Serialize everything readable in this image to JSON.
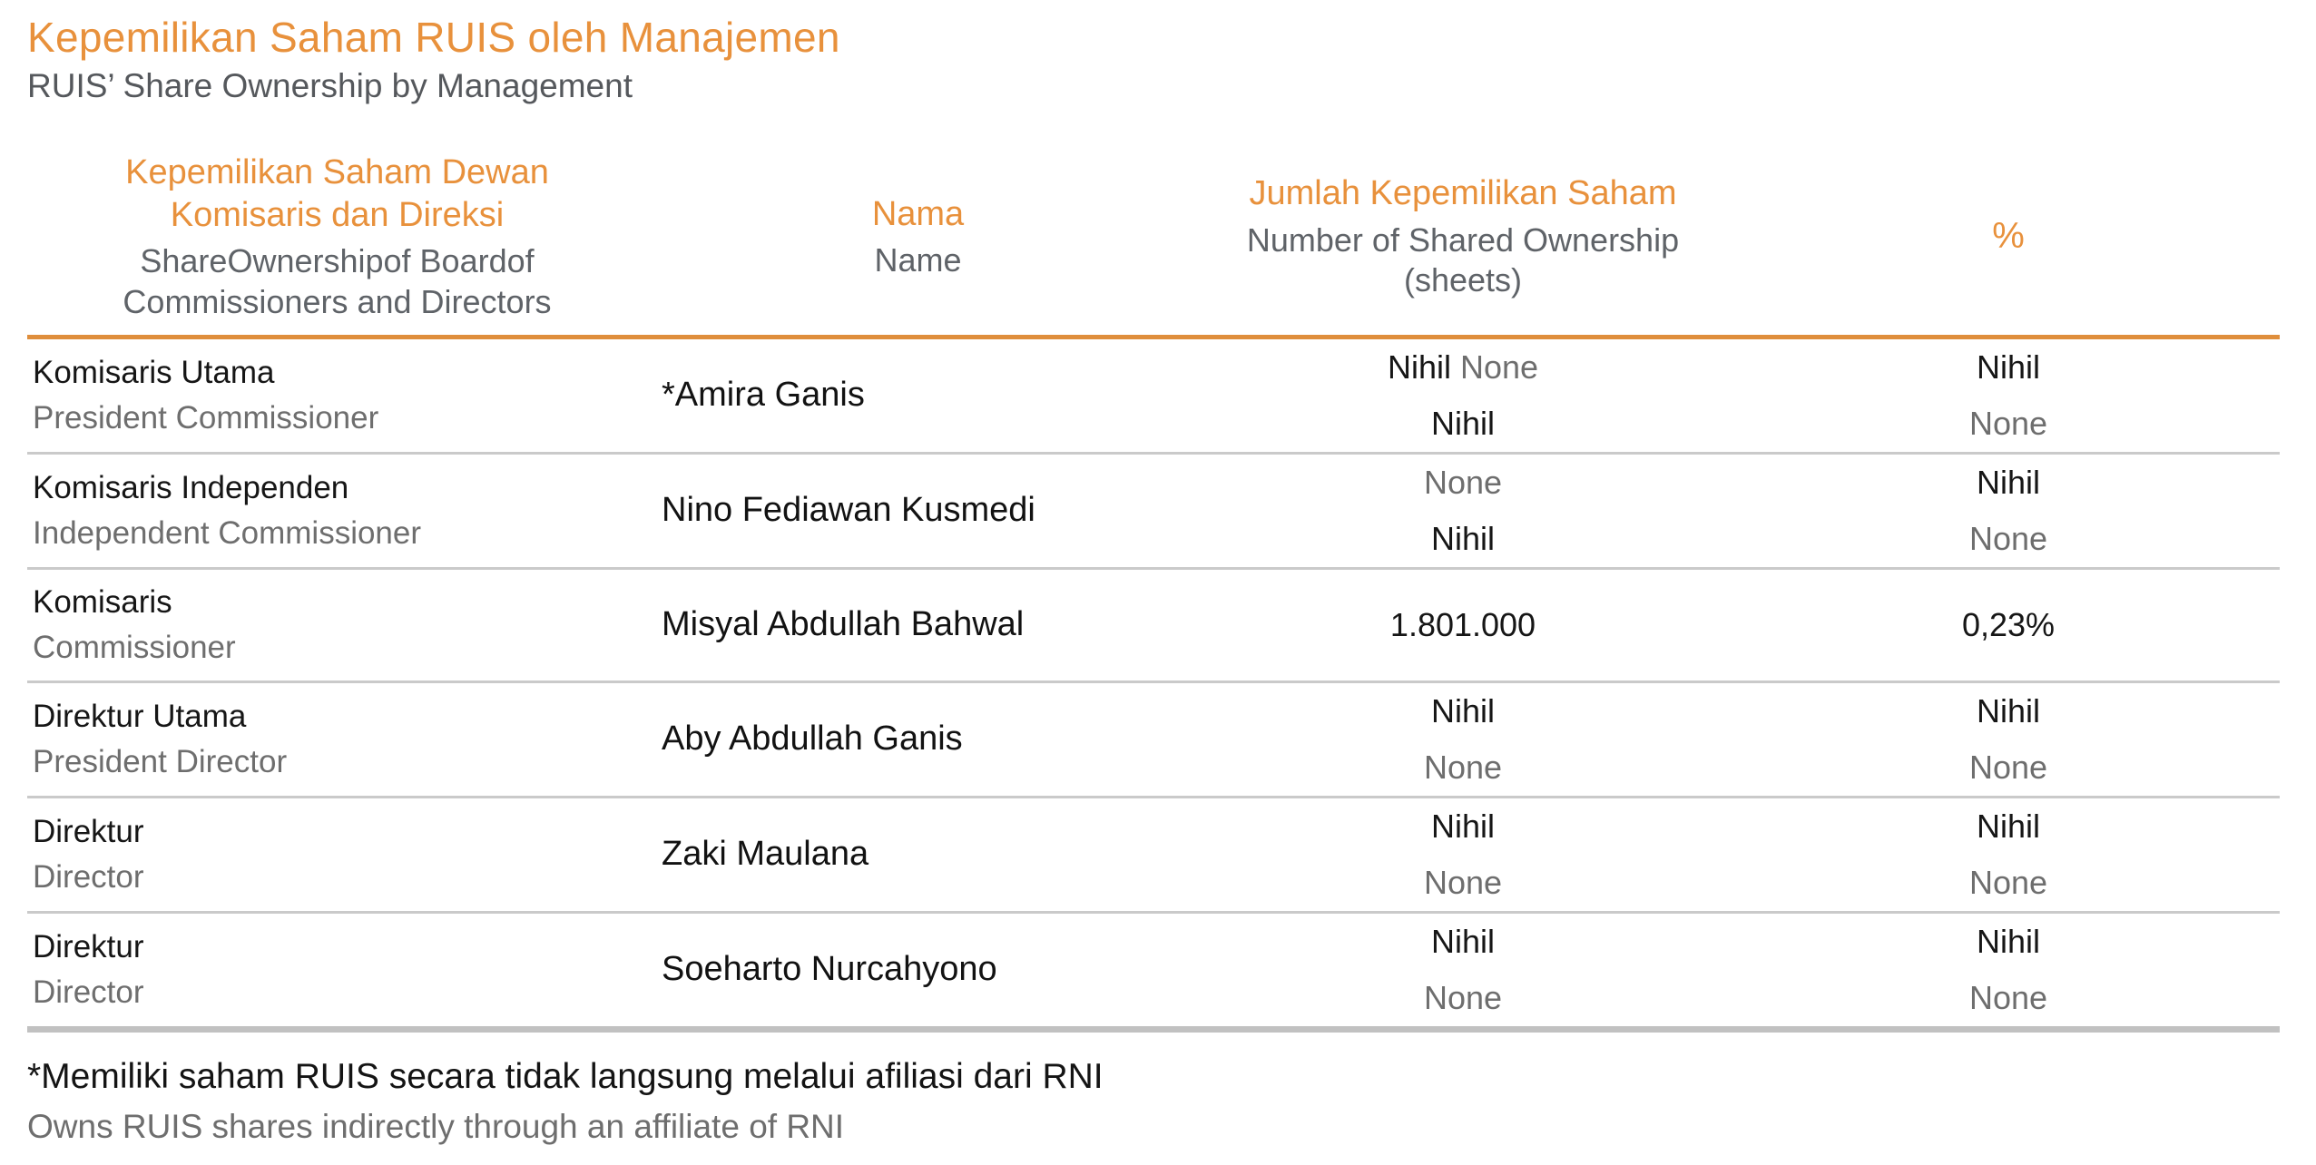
{
  "page": {
    "title": "Kepemilikan Saham RUIS oleh Manajemen",
    "subtitle": "RUIS’ Share Ownership by Management"
  },
  "colors": {
    "accent": "#E8913C",
    "header_border": "#DF8E3C",
    "row_divider": "#CACACA",
    "bottom_border": "#C1C1C1",
    "text_dark": "#161616",
    "text_muted": "#6E6E6E"
  },
  "table": {
    "columns": [
      {
        "title_id": "Kepemilikan Saham Dewan\nKomisaris dan Direksi",
        "title_en": "ShareOwnershipof Boardof\nCommissioners and Directors"
      },
      {
        "title_id": "Nama",
        "title_en": "Name"
      },
      {
        "title_id": "Jumlah Kepemilikan Saham",
        "title_en": "Number of Shared Ownership\n(sheets)"
      },
      {
        "title_id": "%",
        "title_en": ""
      }
    ],
    "rows": [
      {
        "position_id": "Komisaris Utama",
        "position_en": "President Commissioner",
        "name": "*Amira Ganis",
        "shares": [
          [
            [
              "Nihil ",
              "d"
            ],
            [
              "None",
              "m"
            ]
          ],
          [
            [
              "Nihil",
              "d"
            ]
          ]
        ],
        "percent": [
          [
            [
              "Nihil",
              "d"
            ]
          ],
          [
            [
              "None",
              "m"
            ]
          ]
        ]
      },
      {
        "position_id": "Komisaris Independen",
        "position_en": "Independent Commissioner",
        "name": "Nino Fediawan Kusmedi",
        "shares": [
          [
            [
              "None",
              "m"
            ]
          ],
          [
            [
              "Nihil",
              "d"
            ]
          ]
        ],
        "percent": [
          [
            [
              "Nihil",
              "d"
            ]
          ],
          [
            [
              "None",
              "m"
            ]
          ]
        ]
      },
      {
        "position_id": "Komisaris",
        "position_en": "Commissioner",
        "name": "Misyal Abdullah Bahwal",
        "shares": [
          [
            [
              "1.801.000",
              "d"
            ]
          ]
        ],
        "percent": [
          [
            [
              "0,23%",
              "d"
            ]
          ]
        ]
      },
      {
        "position_id": "Direktur Utama",
        "position_en": "President Director",
        "name": "Aby Abdullah Ganis",
        "shares": [
          [
            [
              "Nihil",
              "d"
            ]
          ],
          [
            [
              "None",
              "m"
            ]
          ]
        ],
        "percent": [
          [
            [
              "Nihil",
              "d"
            ]
          ],
          [
            [
              "None",
              "m"
            ]
          ]
        ]
      },
      {
        "position_id": "Direktur",
        "position_en": "Director",
        "name": "Zaki Maulana",
        "shares": [
          [
            [
              "Nihil",
              "d"
            ]
          ],
          [
            [
              "None",
              "m"
            ]
          ]
        ],
        "percent": [
          [
            [
              "Nihil",
              "d"
            ]
          ],
          [
            [
              "None",
              "m"
            ]
          ]
        ]
      },
      {
        "position_id": "Direktur",
        "position_en": "Director",
        "name": "Soeharto Nurcahyono",
        "shares": [
          [
            [
              "Nihil",
              "d"
            ]
          ],
          [
            [
              "None",
              "m"
            ]
          ]
        ],
        "percent": [
          [
            [
              "Nihil",
              "d"
            ]
          ],
          [
            [
              "None",
              "m"
            ]
          ]
        ]
      }
    ]
  },
  "footnote": {
    "line_id": "*Memiliki saham RUIS secara tidak langsung melalui afiliasi dari RNI",
    "line_en": "Owns RUIS shares indirectly through an affiliate of RNI"
  }
}
